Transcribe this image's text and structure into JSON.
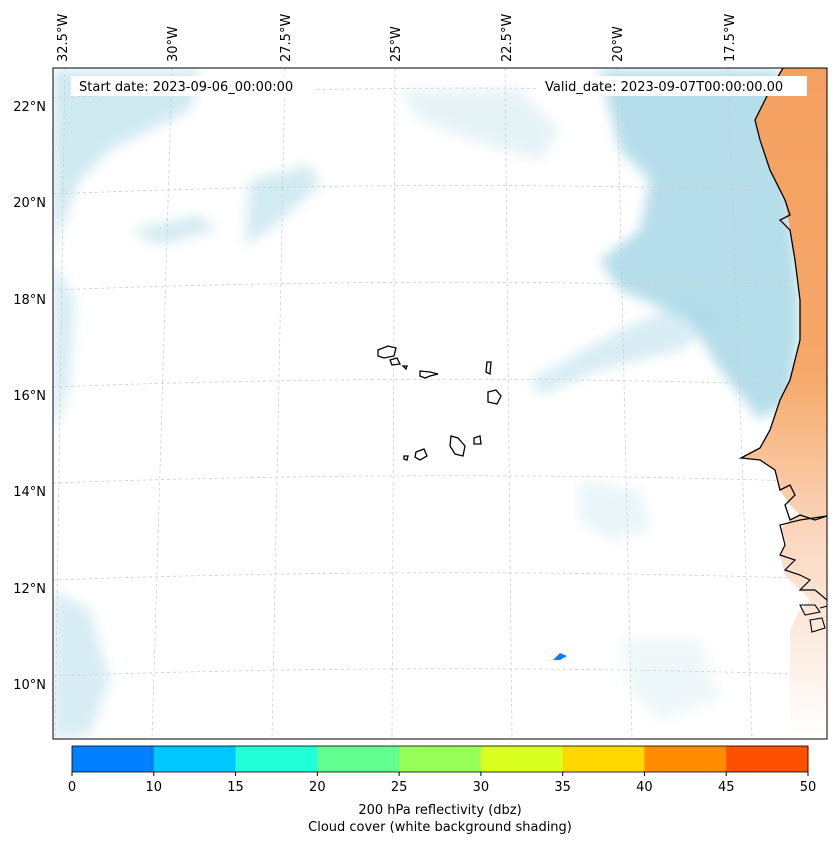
{
  "map": {
    "start_date": "Start date: 2023-09-06_00:00:00",
    "valid_date": "Valid_date: 2023-09-07T00:00:00.00",
    "lon_labels": [
      "32.5°W",
      "30°W",
      "27.5°W",
      "25°W",
      "22.5°W",
      "20°W",
      "17.5°W"
    ],
    "lat_labels": [
      "22°N",
      "20°N",
      "18°N",
      "16°N",
      "14°N",
      "12°N",
      "10°N"
    ]
  },
  "colorbar": {
    "ticks": [
      "0",
      "10",
      "15",
      "20",
      "25",
      "30",
      "35",
      "40",
      "45",
      "50"
    ],
    "colors": [
      "#0080ff",
      "#00c8ff",
      "#20ffd8",
      "#60ff90",
      "#98ff58",
      "#d8ff20",
      "#ffd800",
      "#ff8c00",
      "#ff5000"
    ],
    "label_line1": "200 hPa reflectivity (dbz)",
    "label_line2": "Cloud cover (white background shading)"
  },
  "colors": {
    "cloud": "#a8d8e6",
    "land_warm": "#f4a060",
    "coast": "#000000",
    "grid": "#cccccc"
  }
}
